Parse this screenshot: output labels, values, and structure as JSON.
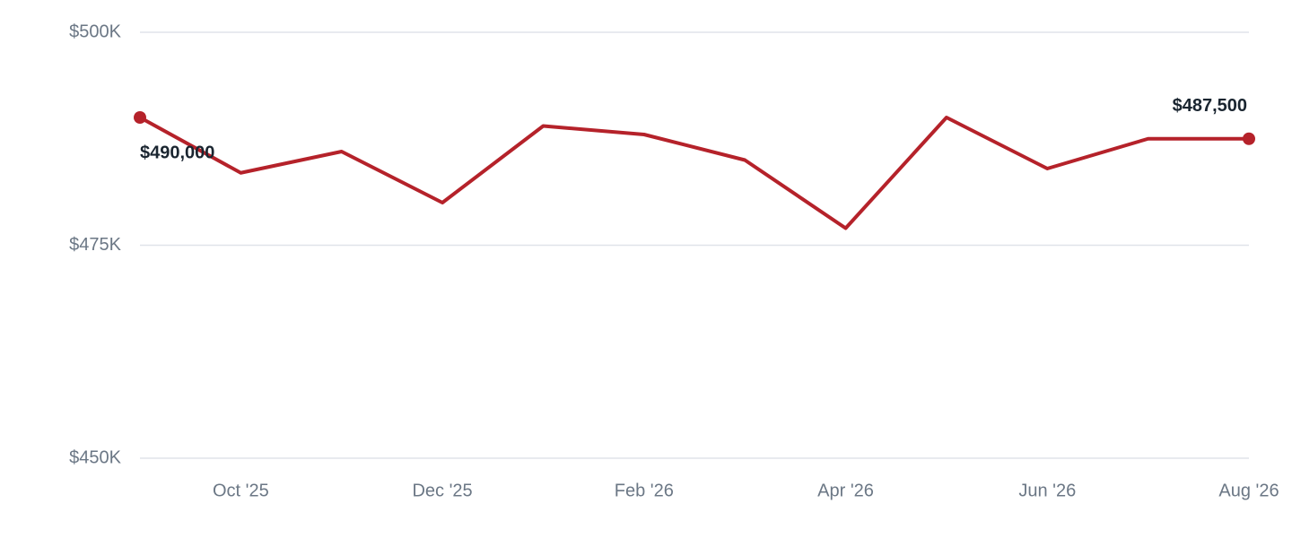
{
  "chart_data": {
    "type": "line",
    "categories": [
      null,
      "Oct '25",
      null,
      "Dec '25",
      null,
      "Feb '26",
      null,
      "Apr '26",
      null,
      "Jun '26",
      null,
      "Aug '26"
    ],
    "series": [
      {
        "color": "#b5222a",
        "values": [
          490000,
          483500,
          486000,
          480000,
          489000,
          488000,
          485000,
          477000,
          490000,
          484000,
          487500,
          487500
        ],
        "value_labels": [
          "$490,000",
          null,
          null,
          null,
          null,
          null,
          null,
          null,
          null,
          null,
          null,
          "$487,500"
        ]
      }
    ],
    "ylim": [
      450000,
      500000
    ],
    "yticks": [
      {
        "value": 450000,
        "label": "$450K"
      },
      {
        "value": 475000,
        "label": "$475K"
      },
      {
        "value": 500000,
        "label": "$500K"
      }
    ],
    "grid": true
  }
}
